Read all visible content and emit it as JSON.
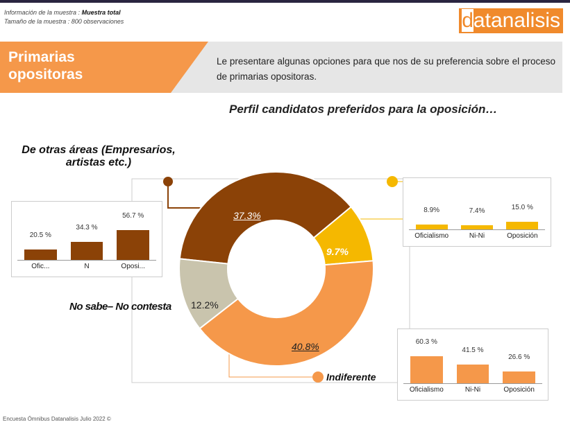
{
  "header": {
    "info_label": "Información de la muestra :",
    "info_value": "Muestra total",
    "size_label": "Tamaño de la muestra : 800 observaciones",
    "logo_d": "d",
    "logo_rest": "atanalisis"
  },
  "section": {
    "title_line1": "Primarias",
    "title_line2": "opositoras",
    "intro": "Le presentare algunas opciones para que nos de su preferencia sobre el proceso de primarias opositoras."
  },
  "footer": "Encuesta Ómnibus Datanalisis Julio 2022 ©",
  "colors": {
    "brown": "#8b4207",
    "yellow": "#f5b800",
    "orange": "#f5984a",
    "gray": "#c9c4ad"
  },
  "chart_data": [
    {
      "type": "pie",
      "title": "Perfil candidatos preferidos para la oposición…",
      "slices": [
        {
          "label": "De otras áreas (Empresarios, artistas etc.)",
          "value": 37.3,
          "display": "37.3%",
          "color": "#8b4207"
        },
        {
          "label": "",
          "value": 9.7,
          "display": "9.7%",
          "color": "#f5b800"
        },
        {
          "label": "Indiferente",
          "value": 40.8,
          "display": "40.8%",
          "color": "#f5984a"
        },
        {
          "label": "No sabe– No contesta",
          "value": 12.2,
          "display": "12.2%",
          "color": "#c9c4ad"
        }
      ]
    },
    {
      "type": "bar",
      "title": "De otras áreas (Empresarios, artistas etc.)",
      "categories": [
        "Ofic...",
        "N",
        "Oposi..."
      ],
      "values": [
        20.5,
        34.3,
        56.7
      ],
      "labels": [
        "20.5 %",
        "34.3 %",
        "56.7 %"
      ],
      "color": "#8b4207"
    },
    {
      "type": "bar",
      "categories": [
        "Oficialismo",
        "Ni-Ni",
        "Oposición"
      ],
      "values": [
        8.9,
        7.4,
        15.0
      ],
      "labels": [
        "8.9%",
        "7.4%",
        "15.0 %"
      ],
      "color": "#f5b800"
    },
    {
      "type": "bar",
      "title": "Indiferente",
      "categories": [
        "Oficialismo",
        "Ni-Ni",
        "Oposición"
      ],
      "values": [
        60.3,
        41.5,
        26.6
      ],
      "labels": [
        "60.3 %",
        "41.5 %",
        "26.6 %"
      ],
      "color": "#f5984a"
    }
  ]
}
